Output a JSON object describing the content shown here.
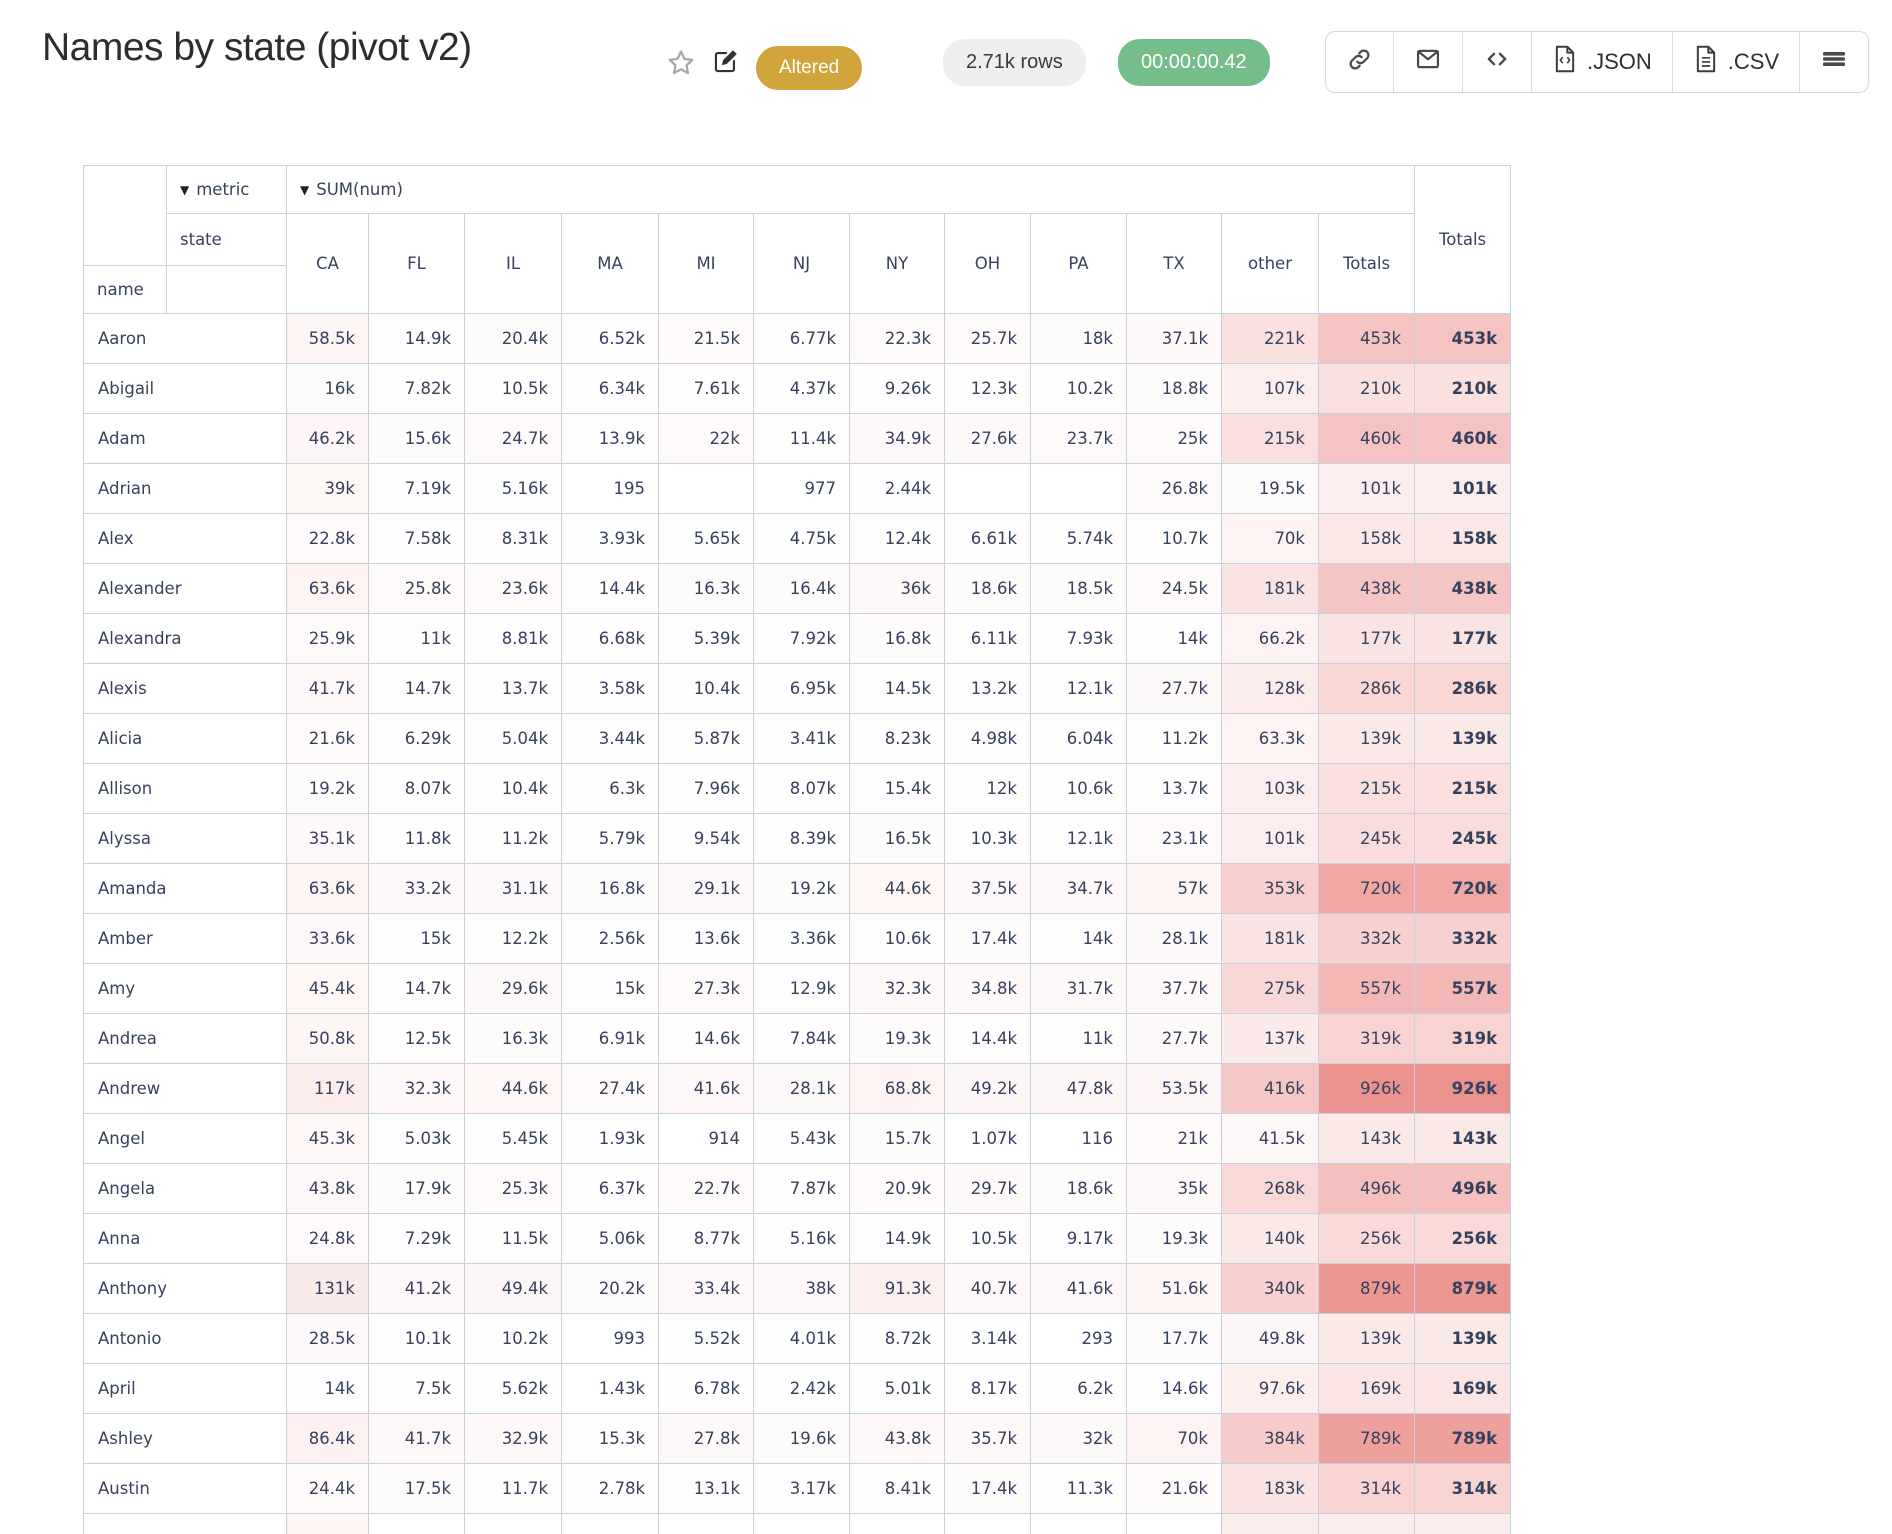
{
  "header": {
    "title": "Names by state (pivot v2)",
    "status_badge": "Altered",
    "row_count": "2.71k rows",
    "duration": "00:00:00.42",
    "toolbar": {
      "link_icon": "link-icon",
      "email_icon": "envelope-icon",
      "embed_icon": "code-icon",
      "json_label": ".JSON",
      "csv_label": ".CSV",
      "menu_icon": "hamburger-icon"
    }
  },
  "pivot": {
    "triangle": "▼",
    "metric_label": "metric",
    "sum_label": "SUM(num)",
    "col_dim": "state",
    "row_dim": "name",
    "row_totals_label": "Totals",
    "grand_total_label": "Totals",
    "columns": [
      "CA",
      "FL",
      "IL",
      "MA",
      "MI",
      "NJ",
      "NY",
      "OH",
      "PA",
      "TX",
      "other"
    ],
    "heatmap_max": 926000,
    "rows": [
      {
        "name": "Aaron",
        "values": [
          "58.5k",
          "14.9k",
          "20.4k",
          "6.52k",
          "21.5k",
          "6.77k",
          "22.3k",
          "25.7k",
          "18k",
          "37.1k",
          "221k"
        ],
        "total": "453k"
      },
      {
        "name": "Abigail",
        "values": [
          "16k",
          "7.82k",
          "10.5k",
          "6.34k",
          "7.61k",
          "4.37k",
          "9.26k",
          "12.3k",
          "10.2k",
          "18.8k",
          "107k"
        ],
        "total": "210k"
      },
      {
        "name": "Adam",
        "values": [
          "46.2k",
          "15.6k",
          "24.7k",
          "13.9k",
          "22k",
          "11.4k",
          "34.9k",
          "27.6k",
          "23.7k",
          "25k",
          "215k"
        ],
        "total": "460k"
      },
      {
        "name": "Adrian",
        "values": [
          "39k",
          "7.19k",
          "5.16k",
          "195",
          "",
          "977",
          "2.44k",
          "",
          "",
          "26.8k",
          "19.5k"
        ],
        "total": "101k"
      },
      {
        "name": "Alex",
        "values": [
          "22.8k",
          "7.58k",
          "8.31k",
          "3.93k",
          "5.65k",
          "4.75k",
          "12.4k",
          "6.61k",
          "5.74k",
          "10.7k",
          "70k"
        ],
        "total": "158k"
      },
      {
        "name": "Alexander",
        "values": [
          "63.6k",
          "25.8k",
          "23.6k",
          "14.4k",
          "16.3k",
          "16.4k",
          "36k",
          "18.6k",
          "18.5k",
          "24.5k",
          "181k"
        ],
        "total": "438k"
      },
      {
        "name": "Alexandra",
        "values": [
          "25.9k",
          "11k",
          "8.81k",
          "6.68k",
          "5.39k",
          "7.92k",
          "16.8k",
          "6.11k",
          "7.93k",
          "14k",
          "66.2k"
        ],
        "total": "177k"
      },
      {
        "name": "Alexis",
        "values": [
          "41.7k",
          "14.7k",
          "13.7k",
          "3.58k",
          "10.4k",
          "6.95k",
          "14.5k",
          "13.2k",
          "12.1k",
          "27.7k",
          "128k"
        ],
        "total": "286k"
      },
      {
        "name": "Alicia",
        "values": [
          "21.6k",
          "6.29k",
          "5.04k",
          "3.44k",
          "5.87k",
          "3.41k",
          "8.23k",
          "4.98k",
          "6.04k",
          "11.2k",
          "63.3k"
        ],
        "total": "139k"
      },
      {
        "name": "Allison",
        "values": [
          "19.2k",
          "8.07k",
          "10.4k",
          "6.3k",
          "7.96k",
          "8.07k",
          "15.4k",
          "12k",
          "10.6k",
          "13.7k",
          "103k"
        ],
        "total": "215k"
      },
      {
        "name": "Alyssa",
        "values": [
          "35.1k",
          "11.8k",
          "11.2k",
          "5.79k",
          "9.54k",
          "8.39k",
          "16.5k",
          "10.3k",
          "12.1k",
          "23.1k",
          "101k"
        ],
        "total": "245k"
      },
      {
        "name": "Amanda",
        "values": [
          "63.6k",
          "33.2k",
          "31.1k",
          "16.8k",
          "29.1k",
          "19.2k",
          "44.6k",
          "37.5k",
          "34.7k",
          "57k",
          "353k"
        ],
        "total": "720k"
      },
      {
        "name": "Amber",
        "values": [
          "33.6k",
          "15k",
          "12.2k",
          "2.56k",
          "13.6k",
          "3.36k",
          "10.6k",
          "17.4k",
          "14k",
          "28.1k",
          "181k"
        ],
        "total": "332k"
      },
      {
        "name": "Amy",
        "values": [
          "45.4k",
          "14.7k",
          "29.6k",
          "15k",
          "27.3k",
          "12.9k",
          "32.3k",
          "34.8k",
          "31.7k",
          "37.7k",
          "275k"
        ],
        "total": "557k"
      },
      {
        "name": "Andrea",
        "values": [
          "50.8k",
          "12.5k",
          "16.3k",
          "6.91k",
          "14.6k",
          "7.84k",
          "19.3k",
          "14.4k",
          "11k",
          "27.7k",
          "137k"
        ],
        "total": "319k"
      },
      {
        "name": "Andrew",
        "values": [
          "117k",
          "32.3k",
          "44.6k",
          "27.4k",
          "41.6k",
          "28.1k",
          "68.8k",
          "49.2k",
          "47.8k",
          "53.5k",
          "416k"
        ],
        "total": "926k"
      },
      {
        "name": "Angel",
        "values": [
          "45.3k",
          "5.03k",
          "5.45k",
          "1.93k",
          "914",
          "5.43k",
          "15.7k",
          "1.07k",
          "116",
          "21k",
          "41.5k"
        ],
        "total": "143k"
      },
      {
        "name": "Angela",
        "values": [
          "43.8k",
          "17.9k",
          "25.3k",
          "6.37k",
          "22.7k",
          "7.87k",
          "20.9k",
          "29.7k",
          "18.6k",
          "35k",
          "268k"
        ],
        "total": "496k"
      },
      {
        "name": "Anna",
        "values": [
          "24.8k",
          "7.29k",
          "11.5k",
          "5.06k",
          "8.77k",
          "5.16k",
          "14.9k",
          "10.5k",
          "9.17k",
          "19.3k",
          "140k"
        ],
        "total": "256k"
      },
      {
        "name": "Anthony",
        "values": [
          "131k",
          "41.2k",
          "49.4k",
          "20.2k",
          "33.4k",
          "38k",
          "91.3k",
          "40.7k",
          "41.6k",
          "51.6k",
          "340k"
        ],
        "total": "879k"
      },
      {
        "name": "Antonio",
        "values": [
          "28.5k",
          "10.1k",
          "10.2k",
          "993",
          "5.52k",
          "4.01k",
          "8.72k",
          "3.14k",
          "293",
          "17.7k",
          "49.8k"
        ],
        "total": "139k"
      },
      {
        "name": "April",
        "values": [
          "14k",
          "7.5k",
          "5.62k",
          "1.43k",
          "6.78k",
          "2.42k",
          "5.01k",
          "8.17k",
          "6.2k",
          "14.6k",
          "97.6k"
        ],
        "total": "169k"
      },
      {
        "name": "Ashley",
        "values": [
          "86.4k",
          "41.7k",
          "32.9k",
          "15.3k",
          "27.8k",
          "19.6k",
          "43.8k",
          "35.7k",
          "32k",
          "70k",
          "384k"
        ],
        "total": "789k"
      },
      {
        "name": "Austin",
        "values": [
          "24.4k",
          "17.5k",
          "11.7k",
          "2.78k",
          "13.1k",
          "3.17k",
          "8.41k",
          "17.4k",
          "11.3k",
          "21.6k",
          "183k"
        ],
        "total": "314k"
      }
    ]
  },
  "colors": {
    "heat_base": "#ec928e",
    "badge_gold": "#d1a43c",
    "timer_green": "#75bd8b",
    "pill_gray": "#efefef",
    "table_border": "#c7d1de",
    "cell_text": "#36425d"
  }
}
